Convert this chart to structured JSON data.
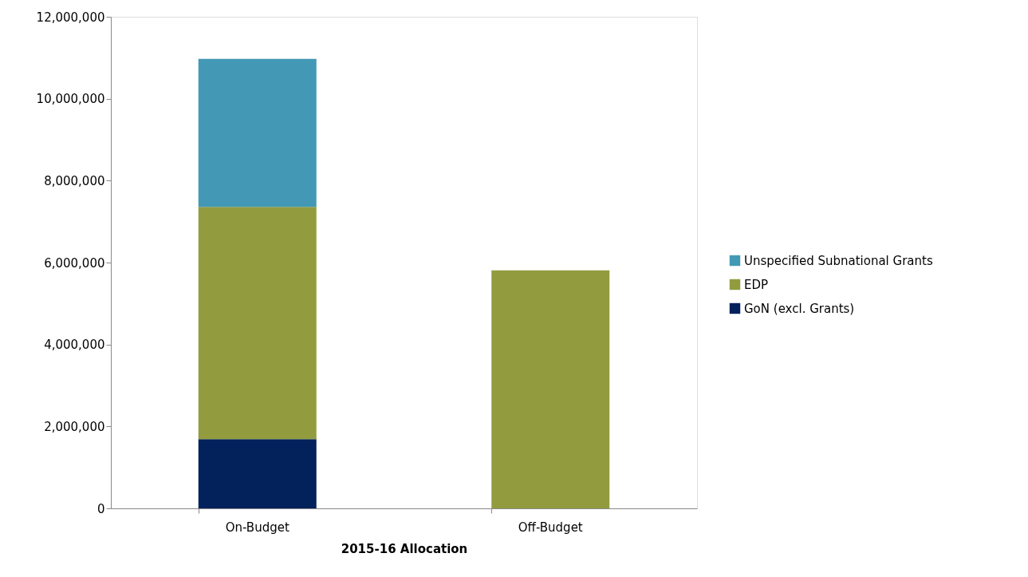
{
  "chart_data": {
    "type": "bar",
    "xlabel": "2015-16 Allocation",
    "categories": [
      "On-Budget",
      "Off-Budget"
    ],
    "stacked": true,
    "series": [
      {
        "name": "GoN (excl. Grants)",
        "color": "#03215b",
        "values": [
          1690000,
          null
        ]
      },
      {
        "name": "EDP",
        "color": "#929c3f",
        "values": [
          5670000,
          5810000
        ]
      },
      {
        "name": "Unspecified Subnational Grants",
        "color": "#4399b5",
        "values": [
          3610000,
          null
        ]
      }
    ],
    "ylim": [
      0,
      12000000
    ],
    "yticks": [
      0,
      {
        "value": 2000000,
        "label": "2,000,000"
      },
      {
        "value": 4000000,
        "label": "4,000,000"
      },
      {
        "value": 6000000,
        "label": "6,000,000"
      },
      {
        "value": 8000000,
        "label": "8,000,000"
      },
      {
        "value": 10000000,
        "label": "10,000,000"
      },
      {
        "value": 12000000,
        "label": "12,000,000"
      }
    ],
    "grid": false,
    "legend": "right"
  }
}
